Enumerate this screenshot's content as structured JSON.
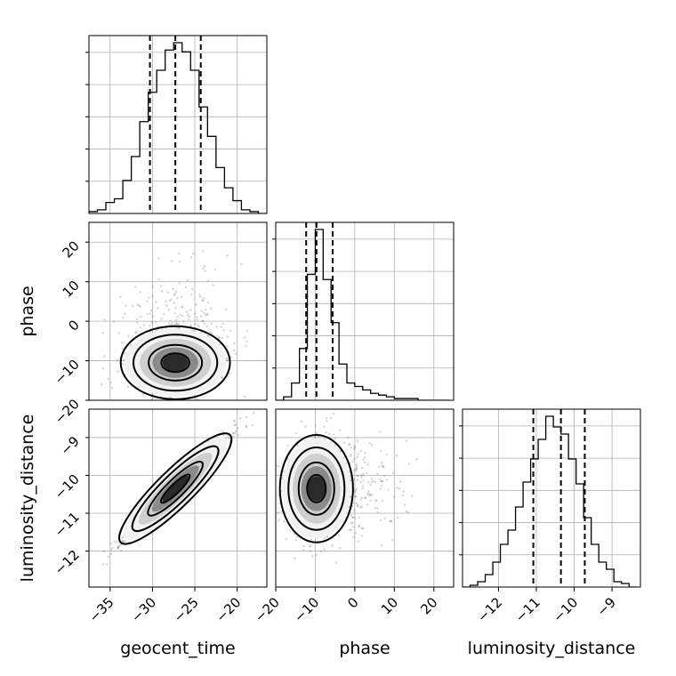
{
  "chart_data": {
    "type": "corner",
    "parameters": [
      "geocent_time",
      "phase",
      "luminosity_distance"
    ],
    "ranges": {
      "geocent_time": [
        -37.5,
        -16.5
      ],
      "phase": [
        -20,
        25
      ],
      "luminosity_distance": [
        -12.95,
        -8.25
      ]
    },
    "ticks": {
      "geocent_time": [
        -35,
        -30,
        -25,
        -20
      ],
      "phase": [
        -20,
        -10,
        0,
        10,
        20
      ],
      "luminosity_distance": [
        -12,
        -11,
        -10,
        -9
      ]
    },
    "tick_labels": {
      "geocent_time": [
        "−35",
        "−30",
        "−25",
        "−20"
      ],
      "phase": [
        "−20",
        "−10",
        "0",
        "10",
        "20"
      ],
      "luminosity_distance": [
        "−12",
        "−11",
        "−10",
        "−9"
      ]
    },
    "quantiles": {
      "geocent_time": [
        -30.3,
        -27.3,
        -24.3
      ],
      "phase": [
        -12.3,
        -9.7,
        -5.6
      ],
      "luminosity_distance": [
        -11.08,
        -10.35,
        -9.72
      ]
    },
    "histograms": {
      "geocent_time": {
        "edges": [
          -37.5,
          -36.5,
          -35.5,
          -34.5,
          -33.5,
          -32.5,
          -31.5,
          -30.5,
          -29.5,
          -28.5,
          -27.5,
          -26.5,
          -25.5,
          -24.5,
          -23.5,
          -22.5,
          -21.5,
          -20.5,
          -19.5,
          -18.5,
          -17.5,
          -16.5
        ],
        "counts": [
          0.01,
          0.02,
          0.06,
          0.08,
          0.18,
          0.31,
          0.5,
          0.66,
          0.78,
          0.89,
          0.93,
          0.88,
          0.78,
          0.58,
          0.42,
          0.25,
          0.14,
          0.07,
          0.02,
          0.01,
          0.0
        ]
      },
      "phase": {
        "edges": [
          -20,
          -18,
          -16,
          -14,
          -12,
          -10,
          -8,
          -6,
          -4,
          -2,
          0,
          2,
          4,
          6,
          8,
          10,
          12,
          14,
          16,
          18,
          20,
          22,
          24
        ],
        "counts": [
          0.0,
          0.02,
          0.1,
          0.3,
          0.73,
          0.99,
          0.7,
          0.45,
          0.21,
          0.1,
          0.08,
          0.06,
          0.04,
          0.03,
          0.02,
          0.01,
          0.01,
          0.01,
          0.0,
          0.0,
          0.0,
          0.0
        ]
      },
      "luminosity_distance": {
        "edges": [
          -12.95,
          -12.75,
          -12.55,
          -12.35,
          -12.15,
          -11.95,
          -11.75,
          -11.55,
          -11.35,
          -11.15,
          -10.95,
          -10.75,
          -10.55,
          -10.35,
          -10.15,
          -9.95,
          -9.75,
          -9.55,
          -9.35,
          -9.15,
          -8.95,
          -8.75,
          -8.55,
          -8.35
        ],
        "counts": [
          0.0,
          0.01,
          0.03,
          0.07,
          0.14,
          0.24,
          0.32,
          0.45,
          0.59,
          0.72,
          0.83,
          0.96,
          0.9,
          0.86,
          0.72,
          0.58,
          0.39,
          0.24,
          0.14,
          0.1,
          0.03,
          0.02,
          0.0
        ]
      }
    },
    "density_2d": {
      "phase_vs_geocent_time": {
        "center": [
          -27.3,
          -10.5
        ],
        "sd": [
          3,
          4.3
        ],
        "rho": 0.05
      },
      "luminosity_distance_vs_geocent_time": {
        "center": [
          -27.3,
          -10.35
        ],
        "sd": [
          3,
          0.66
        ],
        "rho": 0.97
      },
      "luminosity_distance_vs_phase": {
        "center": [
          -9.7,
          -10.35
        ],
        "sd": [
          4.3,
          0.66
        ],
        "rho": 0.1
      }
    },
    "grid": true
  }
}
